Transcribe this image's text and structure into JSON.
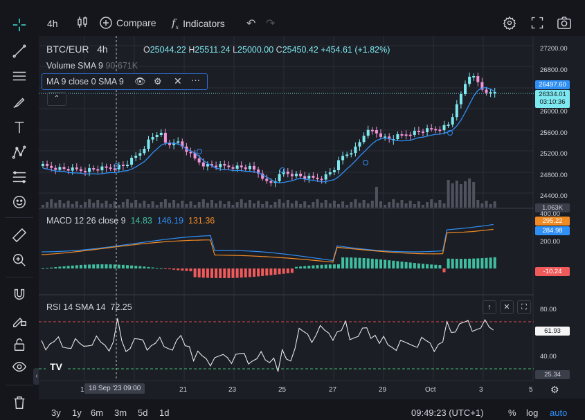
{
  "toolbar": {
    "interval": "4h",
    "compare": "Compare",
    "indicators": "Indicators"
  },
  "symbol": {
    "pair": "BTC/EUR",
    "interval": "4h",
    "o_label": "O",
    "o": "25044.22",
    "h_label": "H",
    "h": "25511.24",
    "l_label": "L",
    "l": "25000.00",
    "c_label": "C",
    "c": "25450.42",
    "change": "+454.61 (+1.82%)"
  },
  "volume_legend": {
    "name": "Volume SMA 9",
    "value": "90.671K"
  },
  "ma_legend": {
    "name": "MA 9 close 0 SMA 9"
  },
  "macd_legend": {
    "name": "MACD 12 26 close 9",
    "v1": "14.83",
    "v2": "146.19",
    "v3": "131.36"
  },
  "rsi_legend": {
    "name": "RSI 14 SMA 14",
    "value": "72.25"
  },
  "price_axis": [
    "27200.00",
    "26800.00",
    "26000.00",
    "25600.00",
    "25200.00",
    "24800.00",
    "24400.00"
  ],
  "price_tags": {
    "last": "26497.60",
    "current": "26334.01",
    "countdown": "03:10:36",
    "volume": "1.063K"
  },
  "macd_axis": {
    "top": "400.00",
    "tag1": "295.22",
    "tag2": "284.98",
    "mid": "200.00",
    "neg": "-10.24"
  },
  "rsi_axis": {
    "top": "80.00",
    "tag": "61.93",
    "mid": "40.00",
    "low": "25.34"
  },
  "time_axis": {
    "crosshair": "18 Sep '23  09:00",
    "ticks": [
      "21",
      "23",
      "25",
      "27",
      "29",
      "Oct",
      "3",
      "5"
    ],
    "prefix": "1"
  },
  "bottom": {
    "ranges": [
      "3y",
      "1y",
      "6m",
      "3m",
      "5d",
      "1d"
    ],
    "clock": "09:49:23 (UTC+1)",
    "percent": "%",
    "log": "log",
    "auto": "auto"
  },
  "colors": {
    "up": "#7de8ef",
    "down": "#f294d8",
    "ma": "#2f8ff5",
    "macd_signal": "#f08a24",
    "hist_up": "#3fbfa0",
    "hist_down": "#f05a5a"
  }
}
